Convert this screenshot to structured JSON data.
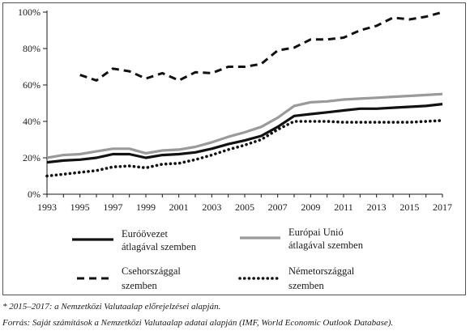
{
  "chart_data": {
    "type": "line",
    "x": [
      1993,
      1994,
      1995,
      1996,
      1997,
      1998,
      1999,
      2000,
      2001,
      2002,
      2003,
      2004,
      2005,
      2006,
      2007,
      2008,
      2009,
      2010,
      2011,
      2012,
      2013,
      2014,
      2015,
      2016,
      2017
    ],
    "x_ticks": [
      "1993",
      "1995",
      "1997",
      "1999",
      "2001",
      "2003",
      "2005",
      "2007",
      "2009",
      "2011",
      "2013",
      "2015",
      "2017"
    ],
    "y_ticks": [
      "0%",
      "20%",
      "40%",
      "60%",
      "80%",
      "100%"
    ],
    "ylim": [
      0,
      100
    ],
    "grid": false,
    "legend_position": "bottom",
    "series": [
      {
        "name": "Euróövezet átlagával szemben",
        "name_lines": [
          "Euróövezet",
          "átlagával szemben"
        ],
        "style": "solid-black",
        "values": [
          17.5,
          18.5,
          19,
          20,
          22,
          22,
          20,
          21.5,
          22,
          23,
          25,
          27.5,
          29.5,
          32,
          37,
          43,
          44,
          45,
          46,
          47,
          47,
          47.5,
          48,
          48.5,
          49.5
        ]
      },
      {
        "name": "Európai Unió átlagával szemben",
        "name_lines": [
          "Európai Unió",
          "átlagával szemben"
        ],
        "style": "solid-gray",
        "values": [
          20,
          21.5,
          22,
          23.5,
          25,
          25,
          22.5,
          24,
          24.5,
          26,
          28.5,
          31.5,
          34,
          37,
          42,
          48.5,
          50.5,
          51,
          52,
          52.5,
          53,
          53.5,
          54,
          54.5,
          55
        ]
      },
      {
        "name": "Csehországgal szemben",
        "name_lines": [
          "Csehországgal",
          "szemben"
        ],
        "style": "dashed-black",
        "values": [
          null,
          null,
          65.5,
          62.5,
          69,
          67.5,
          63.5,
          66.5,
          62.5,
          67,
          66.5,
          70,
          70,
          71.5,
          79,
          80.5,
          85,
          85,
          86,
          90,
          92.5,
          97,
          96,
          97.5,
          100
        ]
      },
      {
        "name": "Németországgal szemben",
        "name_lines": [
          "Németországgal",
          "szemben"
        ],
        "style": "dotted-black",
        "values": [
          10,
          11,
          12,
          13,
          15,
          15.5,
          14.5,
          16.5,
          17,
          19,
          21.5,
          24.5,
          27,
          30,
          35.5,
          40,
          40,
          40,
          39.5,
          39.5,
          39.5,
          39.5,
          39.5,
          40,
          40.5
        ]
      }
    ]
  },
  "footnote": "* 2015–2017: a Nemzetközi Valutaalap előrejelzései alapján.",
  "source": "Forrás: Saját számítások a Nemzetközi Valutaalap adatai alapján (IMF, World Economic Outlook Database).",
  "colors": {
    "axis": "#1a1a1a",
    "black_line": "#111111",
    "gray_line": "#9a9a9a"
  }
}
